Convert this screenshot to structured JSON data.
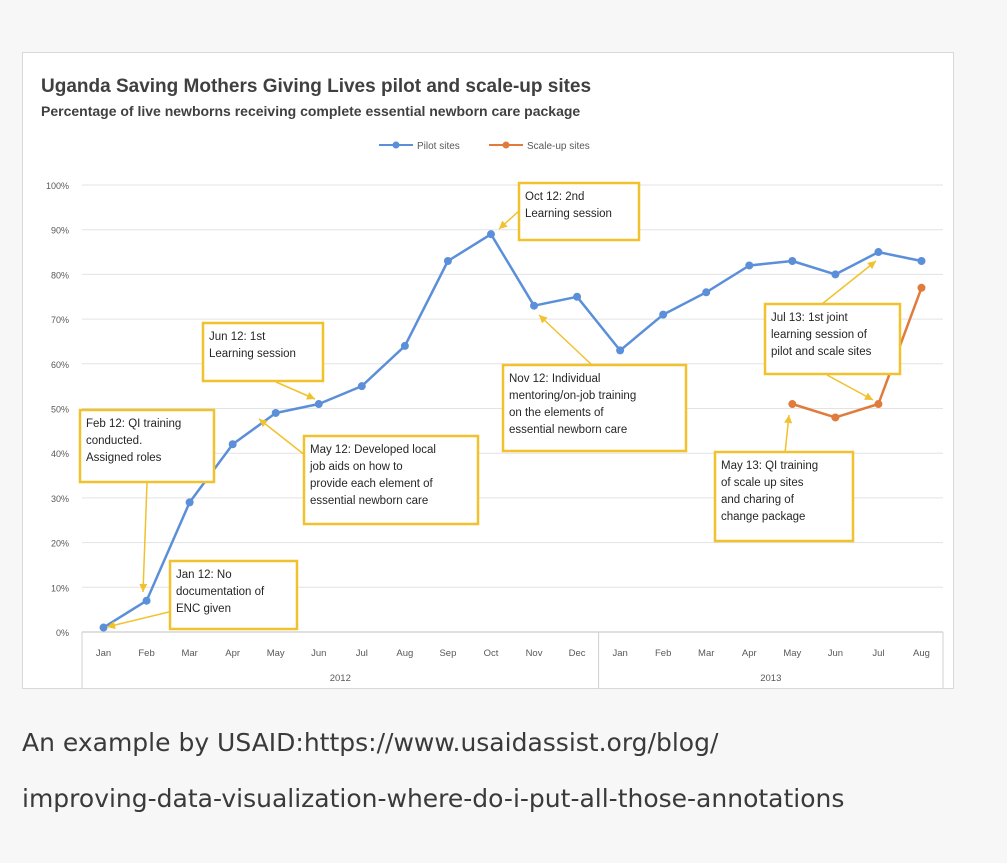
{
  "chart_data": {
    "type": "line",
    "title": "Uganda Saving Mothers Giving Lives pilot and scale-up sites",
    "subtitle": "Percentage of live newborns receiving complete essential newborn care package",
    "categories": [
      "Jan",
      "Feb",
      "Mar",
      "Apr",
      "May",
      "Jun",
      "Jul",
      "Aug",
      "Sep",
      "Oct",
      "Nov",
      "Dec",
      "Jan",
      "Feb",
      "Mar",
      "Apr",
      "May",
      "Jun",
      "Jul",
      "Aug"
    ],
    "year_groups": [
      {
        "label": "2012",
        "from": 0,
        "to": 11
      },
      {
        "label": "2013",
        "from": 12,
        "to": 19
      }
    ],
    "y_ticks": [
      "0%",
      "10%",
      "20%",
      "30%",
      "40%",
      "50%",
      "60%",
      "70%",
      "80%",
      "90%",
      "100%"
    ],
    "ylim": [
      0,
      100
    ],
    "grid": true,
    "legend_position": "top-center",
    "series": [
      {
        "name": "Pilot sites",
        "color": "#5b8fd9",
        "values": [
          1,
          7,
          29,
          42,
          49,
          51,
          55,
          64,
          83,
          89,
          73,
          75,
          63,
          71,
          76,
          82,
          83,
          80,
          85,
          83
        ]
      },
      {
        "name": "Scale-up sites",
        "color": "#e07b3c",
        "values": [
          null,
          null,
          null,
          null,
          null,
          null,
          null,
          null,
          null,
          null,
          null,
          null,
          null,
          null,
          null,
          null,
          51,
          48,
          51,
          77
        ]
      }
    ],
    "annotations": [
      {
        "lines": [
          "Feb 12: QI training",
          "conducted.",
          "Assigned roles"
        ]
      },
      {
        "lines": [
          "Jan 12: No",
          "documentation of",
          "ENC given"
        ]
      },
      {
        "lines": [
          "Jun 12: 1st",
          "Learning session"
        ]
      },
      {
        "lines": [
          "May 12: Developed local",
          "job aids on how to",
          "provide each element of",
          "essential newborn care"
        ]
      },
      {
        "lines": [
          "Oct 12: 2nd",
          "Learning session"
        ]
      },
      {
        "lines": [
          "Nov 12: Individual",
          "mentoring/on-job training",
          "on the elements of",
          "essential newborn care"
        ]
      },
      {
        "lines": [
          "Jul 13: 1st joint",
          "learning session of",
          "pilot and scale sites"
        ]
      },
      {
        "lines": [
          "May 13: QI training",
          "of scale up sites",
          "and charing of",
          "change package"
        ]
      }
    ]
  },
  "caption": {
    "line1": "An example by USAID:https://www.usaidassist.org/blog/",
    "line2": "improving-data-visualization-where-do-i-put-all-those-annotations"
  }
}
